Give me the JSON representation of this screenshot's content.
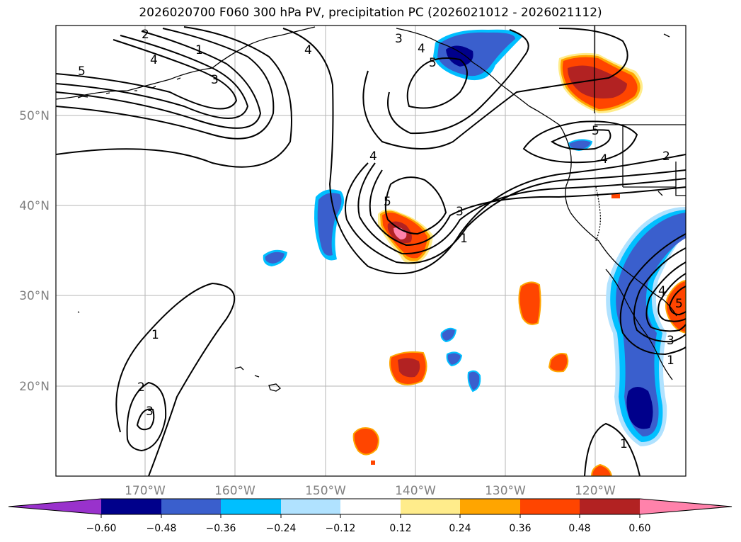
{
  "title": "2026020700 F060 300 hPa PV, precipitation PC (2026021012 - 2026021112)",
  "map": {
    "lat_labels": [
      "50°N",
      "40°N",
      "30°N",
      "20°N"
    ],
    "lon_labels": [
      "170°W",
      "160°W",
      "150°W",
      "140°W",
      "130°W",
      "120°W"
    ],
    "pv_contour_labels": [
      "1",
      "2",
      "3",
      "4",
      "5"
    ]
  },
  "colorbar": {
    "tick_labels": [
      "−0.60",
      "−0.48",
      "−0.36",
      "−0.24",
      "−0.12",
      "0.12",
      "0.24",
      "0.36",
      "0.48",
      "0.60"
    ],
    "colors": [
      "#9932cc",
      "#00008b",
      "#3a5fcd",
      "#00bfff",
      "#b0e2ff",
      "#ffffff",
      "#ffec8b",
      "#ffa500",
      "#ff4500",
      "#b22222",
      "#ff82ab"
    ]
  }
}
